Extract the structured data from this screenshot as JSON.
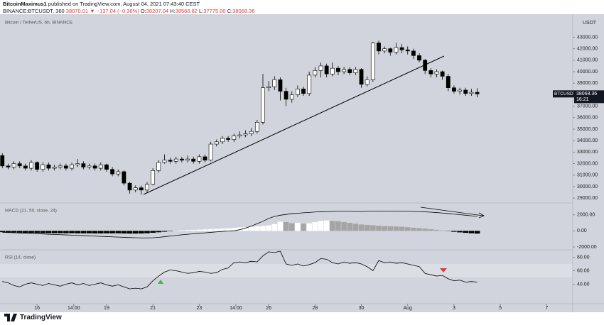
{
  "header": {
    "author": "BitcoinMaximus1",
    "published": "published on TradingView.com, August 04, 2021 07:43:40 CEST",
    "symbol": "BINANCE:BTCUSDT, 360",
    "last": "38070.01",
    "change": "▼ −137.04 (−0.36%)",
    "ohlc": [
      [
        "O:",
        "38207.04"
      ],
      [
        "H:",
        "38566.82"
      ],
      [
        "L:",
        "37775.00"
      ],
      [
        "C:",
        "38068.36"
      ]
    ]
  },
  "chart_data": [
    {
      "type": "candlestick",
      "title": "Bitcoin / TetherUS, 6h, BINANCE",
      "y_label": "USDT",
      "xlim": [
        -0.4,
        98.5
      ],
      "ylim": [
        28640,
        44880
      ],
      "yticks": [
        {
          "value": 29000,
          "label": "29000.00"
        },
        {
          "value": 30000,
          "label": "30000.00"
        },
        {
          "value": 31000,
          "label": "31000.00"
        },
        {
          "value": 32000,
          "label": "32000.00"
        },
        {
          "value": 33000,
          "label": "33000.00"
        },
        {
          "value": 34000,
          "label": "34000.00"
        },
        {
          "value": 35000,
          "label": "35000.00"
        },
        {
          "value": 36000,
          "label": "36000.00"
        },
        {
          "value": 37000,
          "label": "37000.00"
        },
        {
          "value": 39000,
          "label": "39000.00"
        },
        {
          "value": 40000,
          "label": "40000.00"
        },
        {
          "value": 41000,
          "label": "41000.00"
        },
        {
          "value": 42000,
          "label": "42000.00"
        },
        {
          "value": 43000,
          "label": "43000.00"
        }
      ],
      "up_color": "#ffffff",
      "down_color": "#000000",
      "open": [
        32700,
        31800,
        31700,
        32000,
        31800,
        31600,
        32100,
        31500,
        31900,
        31600,
        31700,
        31800,
        31600,
        31900,
        32000,
        31700,
        31800,
        31600,
        31900,
        31500,
        31100,
        31300,
        30300,
        29700,
        29900,
        29700,
        30200,
        31400,
        32100,
        32300,
        32200,
        32400,
        32300,
        32400,
        32200,
        32600,
        32300,
        33700,
        33900,
        34200,
        34100,
        34400,
        34500,
        34600,
        34800,
        35600,
        38600,
        38700,
        39300,
        38300,
        37600,
        38000,
        38500,
        38100,
        39700,
        40100,
        40500,
        39800,
        40300,
        40000,
        40200,
        39900,
        40200,
        38900,
        39300,
        42500,
        41800,
        42000,
        41700,
        42100,
        41900,
        41800,
        41400,
        41000,
        40100,
        39800,
        40000,
        39600,
        38600,
        38300,
        38400,
        38100,
        38207.04
      ],
      "high": [
        32900,
        32000,
        32200,
        32200,
        32000,
        32300,
        32200,
        32100,
        32100,
        31900,
        32000,
        32000,
        32100,
        32400,
        32200,
        32000,
        32000,
        32100,
        32000,
        31700,
        31500,
        31400,
        30400,
        30100,
        30100,
        30400,
        31600,
        32300,
        32800,
        32500,
        32600,
        32600,
        32700,
        32600,
        32800,
        32800,
        33900,
        34100,
        34400,
        34400,
        34600,
        34800,
        34900,
        35100,
        35800,
        39800,
        39200,
        39600,
        39500,
        38600,
        38300,
        38800,
        38700,
        40000,
        40400,
        40800,
        40700,
        40800,
        40500,
        40400,
        40400,
        40400,
        40300,
        39600,
        42600,
        42700,
        42200,
        42100,
        42500,
        42400,
        42200,
        42000,
        41600,
        41100,
        40300,
        40200,
        40100,
        39800,
        38800,
        38600,
        38600,
        38500,
        38566.82
      ],
      "low": [
        31600,
        31500,
        31500,
        31600,
        31400,
        31400,
        31300,
        31300,
        31400,
        31400,
        31500,
        31400,
        31400,
        31700,
        31500,
        31500,
        31400,
        31400,
        31300,
        30900,
        30900,
        30100,
        29400,
        29500,
        29300,
        29500,
        30100,
        31200,
        32000,
        32000,
        32000,
        32100,
        32100,
        32000,
        32000,
        32100,
        32200,
        33500,
        33700,
        33900,
        33900,
        34200,
        34300,
        34400,
        34600,
        35400,
        38300,
        38400,
        37500,
        37000,
        37300,
        37800,
        37900,
        37900,
        39500,
        39500,
        39500,
        39600,
        39700,
        39800,
        39700,
        39700,
        38600,
        38700,
        39100,
        41500,
        41600,
        41400,
        41500,
        41600,
        41500,
        41100,
        40800,
        39800,
        39500,
        39500,
        39300,
        38300,
        38100,
        38000,
        37900,
        37900,
        37775
      ],
      "close": [
        31800,
        31700,
        32000,
        31800,
        31600,
        32100,
        31500,
        31900,
        31600,
        31700,
        31800,
        31600,
        31900,
        32000,
        31700,
        31800,
        31600,
        31900,
        31500,
        31100,
        31300,
        30300,
        29700,
        29900,
        29700,
        30200,
        31400,
        32100,
        32300,
        32200,
        32400,
        32300,
        32400,
        32200,
        32600,
        32300,
        33700,
        33900,
        34200,
        34100,
        34400,
        34500,
        34600,
        34800,
        35600,
        38600,
        38700,
        39300,
        38300,
        37600,
        38000,
        38500,
        38100,
        39700,
        40100,
        40500,
        39800,
        40300,
        40000,
        40200,
        39900,
        40200,
        38900,
        39300,
        42500,
        41800,
        42000,
        41700,
        42100,
        41900,
        41800,
        41400,
        41000,
        40100,
        39800,
        40000,
        39600,
        38600,
        38300,
        38400,
        38100,
        38207,
        38068.36
      ],
      "last_label": {
        "symbol": "BTCUSDT",
        "price": 38068.36,
        "countdown": "16:21"
      }
    },
    {
      "type": "macd",
      "title": "MACD (21, 50, close, 24)",
      "xlim": [
        -0.4,
        98.5
      ],
      "ylim": [
        -2260,
        3390
      ],
      "yticks": [
        {
          "value": 2000,
          "label": "2000.00"
        },
        {
          "value": 0,
          "label": "0.00"
        },
        {
          "value": -2000,
          "label": "-2000.00"
        }
      ],
      "colors": {
        "negative": "#000000",
        "positive_rising": "#ffffff",
        "positive_falling": "#a5a5a5",
        "line": "#000000"
      },
      "histogram": [
        -150,
        -180,
        -200,
        -220,
        -240,
        -250,
        -260,
        -270,
        -270,
        -280,
        -280,
        -290,
        -290,
        -300,
        -300,
        -300,
        -310,
        -310,
        -300,
        -300,
        -300,
        -320,
        -330,
        -330,
        -320,
        -290,
        -230,
        -170,
        -100,
        -40,
        20,
        60,
        100,
        130,
        160,
        190,
        220,
        250,
        280,
        330,
        390,
        440,
        480,
        520,
        570,
        620,
        700,
        850,
        1150,
        1100,
        950,
        1000,
        900,
        950,
        1100,
        1250,
        1300,
        1250,
        1200,
        1100,
        1000,
        900,
        800,
        750,
        700,
        650,
        600,
        580,
        560,
        520,
        460,
        400,
        340,
        280,
        210,
        140,
        60,
        -30,
        -110,
        -180,
        -240,
        -290,
        -330
      ],
      "line": [
        -170,
        -200,
        -230,
        -260,
        -290,
        -320,
        -350,
        -380,
        -410,
        -440,
        -470,
        -500,
        -530,
        -560,
        -590,
        -620,
        -650,
        -680,
        -710,
        -740,
        -770,
        -800,
        -830,
        -850,
        -870,
        -870,
        -850,
        -800,
        -720,
        -640,
        -560,
        -480,
        -420,
        -360,
        -300,
        -240,
        -180,
        -120,
        -60,
        -20,
        20,
        150,
        350,
        600,
        900,
        1200,
        1550,
        1800,
        1950,
        2050,
        2150,
        2200,
        2250,
        2300,
        2350,
        2380,
        2400,
        2420,
        2440,
        2440,
        2440,
        2420,
        2420,
        2440,
        2450,
        2450,
        2460,
        2460,
        2460,
        2450,
        2440,
        2420,
        2400,
        2370,
        2330,
        2280,
        2220,
        2160,
        2090,
        2020,
        1950,
        1880,
        1800
      ]
    },
    {
      "type": "line",
      "title": "RSI (14, close)",
      "xlim": [
        -0.4,
        98.5
      ],
      "ylim": [
        11,
        90
      ],
      "color": "#000000",
      "yticks": [
        {
          "value": 80,
          "label": "80.00"
        },
        {
          "value": 60,
          "label": "60.00"
        },
        {
          "value": 40,
          "label": "40.00"
        }
      ],
      "values": [
        44,
        42,
        38,
        36,
        40,
        42,
        40,
        38,
        41,
        39,
        37,
        40,
        42,
        39,
        41,
        38,
        40,
        42,
        39,
        37,
        39,
        36,
        33,
        34,
        33,
        36,
        45,
        52,
        58,
        61,
        60,
        58,
        56,
        57,
        59,
        58,
        56,
        57,
        62,
        64,
        72,
        73,
        72,
        74,
        73,
        82,
        88,
        87,
        89,
        70,
        68,
        70,
        67,
        69,
        72,
        78,
        77,
        72,
        70,
        73,
        71,
        72,
        70,
        66,
        60,
        75,
        72,
        73,
        71,
        72,
        70,
        68,
        66,
        56,
        54,
        52,
        53,
        48,
        45,
        46,
        43,
        44,
        43
      ],
      "xticks": [
        {
          "value": 6,
          "label": "16"
        },
        {
          "value": 12.33,
          "label": "14:00"
        },
        {
          "value": 18,
          "label": "19"
        },
        {
          "value": 26,
          "label": "21"
        },
        {
          "value": 34,
          "label": "23"
        },
        {
          "value": 40.33,
          "label": "14:00"
        },
        {
          "value": 46,
          "label": "26"
        },
        {
          "value": 54,
          "label": "28"
        },
        {
          "value": 62,
          "label": "30"
        },
        {
          "value": 70,
          "label": "Aug"
        },
        {
          "value": 78,
          "label": "3"
        },
        {
          "value": 86,
          "label": "5"
        },
        {
          "value": 94,
          "label": "7"
        }
      ]
    }
  ],
  "footer": {
    "brand": "TradingView"
  }
}
